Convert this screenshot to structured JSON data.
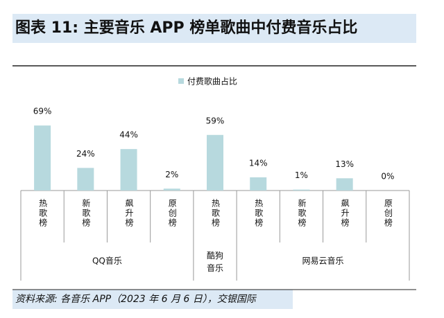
{
  "chart_data": {
    "type": "bar",
    "title": "图表 11: 主要音乐 APP 榜单歌曲中付费音乐占比",
    "source": "资料来源: 各音乐 APP（2023 年 6 月 6 日），交银国际",
    "category_groups": [
      {
        "label": "QQ音乐",
        "categories": [
          "热歌榜",
          "新歌榜",
          "飙升榜",
          "原创榜"
        ]
      },
      {
        "label": "酷狗音乐",
        "categories": [
          "热歌榜"
        ]
      },
      {
        "label": "网易云音乐",
        "categories": [
          "热歌榜",
          "新歌榜",
          "飙升榜",
          "原创榜"
        ]
      }
    ],
    "series": [
      {
        "name": "付费歌曲占比",
        "color": "#b7d9de",
        "values": [
          69,
          24,
          44,
          2,
          59,
          14,
          1,
          13,
          0
        ],
        "value_labels": [
          "69%",
          "24%",
          "44%",
          "2%",
          "59%",
          "14%",
          "1%",
          "13%",
          "0%"
        ]
      }
    ]
  }
}
